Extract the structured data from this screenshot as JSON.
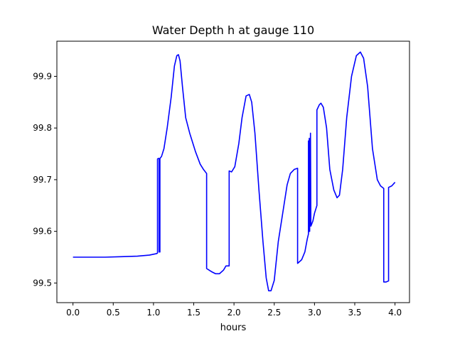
{
  "chart_data": {
    "type": "line",
    "title": "Water Depth h at gauge 110",
    "xlabel": "hours",
    "ylabel": "",
    "xlim": [
      -0.2,
      4.18
    ],
    "ylim": [
      99.462,
      99.968
    ],
    "xticks": [
      0.0,
      0.5,
      1.0,
      1.5,
      2.0,
      2.5,
      3.0,
      3.5,
      4.0
    ],
    "xtick_labels": [
      "0.0",
      "0.5",
      "1.0",
      "1.5",
      "2.0",
      "2.5",
      "3.0",
      "3.5",
      "4.0"
    ],
    "yticks": [
      99.5,
      99.6,
      99.7,
      99.8,
      99.9
    ],
    "ytick_labels": [
      "99.5",
      "99.6",
      "99.7",
      "99.8",
      "99.9"
    ],
    "grid": false,
    "color": "#0000ff",
    "series": [
      {
        "points": [
          [
            0.0,
            99.55
          ],
          [
            0.2,
            99.55
          ],
          [
            0.4,
            99.55
          ],
          [
            0.6,
            99.551
          ],
          [
            0.8,
            99.552
          ],
          [
            0.95,
            99.554
          ],
          [
            1.04,
            99.557
          ],
          [
            1.05,
            99.558
          ],
          [
            1.05,
            99.74
          ],
          [
            1.06,
            99.741
          ],
          [
            1.07,
            99.741
          ],
          [
            1.07,
            99.56
          ],
          [
            1.08,
            99.56
          ],
          [
            1.08,
            99.741
          ],
          [
            1.1,
            99.745
          ],
          [
            1.13,
            99.76
          ],
          [
            1.17,
            99.8
          ],
          [
            1.22,
            99.86
          ],
          [
            1.26,
            99.92
          ],
          [
            1.29,
            99.94
          ],
          [
            1.31,
            99.942
          ],
          [
            1.33,
            99.93
          ],
          [
            1.36,
            99.88
          ],
          [
            1.4,
            99.82
          ],
          [
            1.45,
            99.79
          ],
          [
            1.52,
            99.755
          ],
          [
            1.58,
            99.73
          ],
          [
            1.62,
            99.72
          ],
          [
            1.66,
            99.712
          ],
          [
            1.66,
            99.528
          ],
          [
            1.72,
            99.522
          ],
          [
            1.77,
            99.518
          ],
          [
            1.82,
            99.518
          ],
          [
            1.87,
            99.525
          ],
          [
            1.9,
            99.533
          ],
          [
            1.94,
            99.533
          ],
          [
            1.94,
            99.717
          ],
          [
            1.97,
            99.715
          ],
          [
            2.01,
            99.725
          ],
          [
            2.06,
            99.77
          ],
          [
            2.1,
            99.82
          ],
          [
            2.15,
            99.862
          ],
          [
            2.19,
            99.865
          ],
          [
            2.22,
            99.85
          ],
          [
            2.26,
            99.79
          ],
          [
            2.31,
            99.68
          ],
          [
            2.36,
            99.58
          ],
          [
            2.4,
            99.51
          ],
          [
            2.43,
            99.485
          ],
          [
            2.46,
            99.485
          ],
          [
            2.5,
            99.505
          ],
          [
            2.55,
            99.58
          ],
          [
            2.6,
            99.63
          ],
          [
            2.66,
            99.69
          ],
          [
            2.7,
            99.712
          ],
          [
            2.75,
            99.72
          ],
          [
            2.79,
            99.722
          ],
          [
            2.79,
            99.538
          ],
          [
            2.84,
            99.545
          ],
          [
            2.88,
            99.56
          ],
          [
            2.91,
            99.585
          ],
          [
            2.925,
            99.595
          ],
          [
            2.925,
            99.775
          ],
          [
            2.93,
            99.6
          ],
          [
            2.935,
            99.78
          ],
          [
            2.94,
            99.6
          ],
          [
            2.95,
            99.79
          ],
          [
            2.955,
            99.61
          ],
          [
            2.98,
            99.62
          ],
          [
            3.0,
            99.635
          ],
          [
            3.03,
            99.65
          ],
          [
            3.03,
            99.835
          ],
          [
            3.06,
            99.845
          ],
          [
            3.08,
            99.848
          ],
          [
            3.11,
            99.84
          ],
          [
            3.15,
            99.8
          ],
          [
            3.19,
            99.72
          ],
          [
            3.24,
            99.68
          ],
          [
            3.28,
            99.665
          ],
          [
            3.31,
            99.67
          ],
          [
            3.35,
            99.72
          ],
          [
            3.4,
            99.82
          ],
          [
            3.46,
            99.9
          ],
          [
            3.52,
            99.94
          ],
          [
            3.57,
            99.947
          ],
          [
            3.61,
            99.935
          ],
          [
            3.66,
            99.88
          ],
          [
            3.72,
            99.76
          ],
          [
            3.78,
            99.7
          ],
          [
            3.82,
            99.688
          ],
          [
            3.86,
            99.683
          ],
          [
            3.86,
            99.502
          ],
          [
            3.89,
            99.502
          ],
          [
            3.92,
            99.504
          ],
          [
            3.92,
            99.685
          ],
          [
            3.96,
            99.688
          ],
          [
            4.0,
            99.695
          ]
        ]
      }
    ]
  }
}
